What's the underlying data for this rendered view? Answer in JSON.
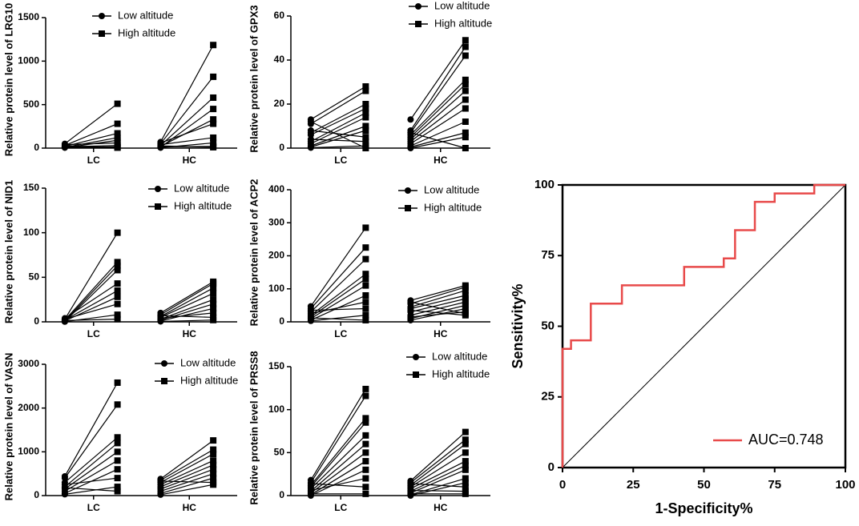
{
  "chart_data": [
    {
      "type": "paired",
      "ylabel": "Relative protein level of LRG10",
      "categories": [
        "LC",
        "HC"
      ],
      "ylim": [
        0,
        1500
      ],
      "yticks": [
        0,
        500,
        1000,
        1500
      ],
      "series": [
        {
          "name": "Low altitude",
          "marker": "circle",
          "color": "#000000",
          "values": [
            [
              50,
              30,
              20,
              10,
              5,
              40,
              15,
              8,
              25,
              12
            ],
            [
              70,
              50,
              30,
              10,
              20,
              60,
              40,
              5,
              15,
              25
            ]
          ]
        },
        {
          "name": "High altitude",
          "marker": "square",
          "color": "#000000",
          "values": [
            [
              510,
              280,
              170,
              120,
              90,
              60,
              30,
              15,
              10,
              5
            ],
            [
              1185,
              820,
              580,
              450,
              330,
              280,
              120,
              60,
              20,
              10
            ]
          ]
        }
      ]
    },
    {
      "type": "paired",
      "ylabel": "Relative protein level of GPX3",
      "categories": [
        "LC",
        "HC"
      ],
      "ylim": [
        0,
        60
      ],
      "yticks": [
        0,
        20,
        40,
        60
      ],
      "series": [
        {
          "name": "Low altitude",
          "marker": "circle",
          "color": "#000000",
          "values": [
            [
              13,
              11,
              7,
              6,
              3,
              2,
              1,
              0.5,
              8,
              4,
              0.2,
              12
            ],
            [
              13,
              8,
              7,
              6,
              5,
              4,
              3,
              2,
              1,
              0.5,
              0,
              7
            ]
          ]
        },
        {
          "name": "High altitude",
          "marker": "square",
          "color": "#000000",
          "values": [
            [
              28,
              26,
              20,
              18,
              16,
              14,
              10,
              8,
              5,
              3,
              1,
              0
            ],
            [
              49,
              46,
              42,
              31,
              29,
              26,
              22,
              18,
              12,
              7,
              5,
              0
            ]
          ]
        }
      ]
    },
    {
      "type": "paired",
      "ylabel": "Relative protein level of NID1",
      "categories": [
        "LC",
        "HC"
      ],
      "ylim": [
        0,
        150
      ],
      "yticks": [
        0,
        50,
        100,
        150
      ],
      "series": [
        {
          "name": "Low altitude",
          "marker": "circle",
          "color": "#000000",
          "values": [
            [
              3,
              2,
              1,
              0.5,
              4,
              2,
              1,
              3,
              0.2,
              1.5
            ],
            [
              10,
              8,
              6,
              5,
              3,
              2,
              1,
              4,
              7,
              0.5
            ]
          ]
        },
        {
          "name": "High altitude",
          "marker": "square",
          "color": "#000000",
          "values": [
            [
              100,
              67,
              63,
              58,
              43,
              35,
              28,
              20,
              8,
              3
            ],
            [
              45,
              43,
              38,
              32,
              25,
              20,
              15,
              10,
              5,
              2
            ]
          ]
        }
      ]
    },
    {
      "type": "paired",
      "ylabel": "Relative protein level of ACP2",
      "categories": [
        "LC",
        "HC"
      ],
      "ylim": [
        0,
        400
      ],
      "yticks": [
        0,
        100,
        200,
        300,
        400
      ],
      "series": [
        {
          "name": "Low altitude",
          "marker": "circle",
          "color": "#000000",
          "values": [
            [
              47,
              40,
              30,
              20,
              15,
              10,
              5,
              25,
              35,
              3,
              12
            ],
            [
              65,
              55,
              45,
              40,
              30,
              20,
              10,
              5,
              15,
              60,
              35
            ]
          ]
        },
        {
          "name": "High altitude",
          "marker": "square",
          "color": "#000000",
          "values": [
            [
              285,
              225,
              190,
              145,
              130,
              110,
              80,
              60,
              40,
              20,
              5
            ],
            [
              110,
              105,
              95,
              80,
              70,
              60,
              50,
              40,
              30,
              25,
              20
            ]
          ]
        }
      ]
    },
    {
      "type": "paired",
      "ylabel": "Relative protein level of VASN",
      "categories": [
        "LC",
        "HC"
      ],
      "ylim": [
        0,
        3000
      ],
      "yticks": [
        0,
        1000,
        2000,
        3000
      ],
      "series": [
        {
          "name": "Low altitude",
          "marker": "circle",
          "color": "#000000",
          "values": [
            [
              440,
              400,
              300,
              200,
              150,
              100,
              50,
              250,
              30,
              180
            ],
            [
              380,
              350,
              300,
              250,
              200,
              150,
              100,
              50,
              330,
              20
            ]
          ]
        },
        {
          "name": "High altitude",
          "marker": "square",
          "color": "#000000",
          "values": [
            [
              2580,
              2080,
              1330,
              1200,
              1000,
              800,
              600,
              400,
              200,
              100
            ],
            [
              1260,
              1050,
              950,
              800,
              700,
              600,
              500,
              400,
              300,
              250
            ]
          ]
        }
      ]
    },
    {
      "type": "paired",
      "ylabel": "Relative protein level of PRSS8",
      "categories": [
        "LC",
        "HC"
      ],
      "ylim": [
        0,
        150
      ],
      "yticks": [
        0,
        50,
        100,
        150
      ],
      "series": [
        {
          "name": "Low altitude",
          "marker": "circle",
          "color": "#000000",
          "values": [
            [
              18,
              15,
              12,
              10,
              8,
              5,
              3,
              1,
              0,
              6,
              14,
              2
            ],
            [
              17,
              15,
              12,
              10,
              8,
              5,
              3,
              1,
              0,
              14,
              6,
              2
            ]
          ]
        },
        {
          "name": "High altitude",
          "marker": "square",
          "color": "#000000",
          "values": [
            [
              124,
              116,
              90,
              85,
              70,
              60,
              50,
              40,
              30,
              20,
              10,
              2
            ],
            [
              74,
              65,
              60,
              50,
              40,
              35,
              30,
              20,
              15,
              10,
              5,
              2
            ]
          ]
        }
      ]
    },
    {
      "type": "line",
      "xlabel": "1-Specificity%",
      "ylabel": "Sensitivity%",
      "xlim": [
        0,
        100
      ],
      "ylim": [
        0,
        100
      ],
      "xticks": [
        0,
        25,
        50,
        75,
        100
      ],
      "yticks": [
        0,
        25,
        50,
        75,
        100
      ],
      "x": [
        0,
        0,
        3,
        3,
        10,
        10,
        21,
        21,
        43,
        43,
        57,
        57,
        61,
        61,
        68,
        68,
        75,
        75,
        89,
        89,
        100
      ],
      "series": [
        {
          "name": "AUC=0.748",
          "color": "#e84a4a",
          "values": [
            0,
            42,
            42,
            45,
            45,
            58,
            58,
            64.5,
            64.5,
            71,
            71,
            74,
            74,
            84,
            84,
            94,
            94,
            97,
            97,
            100,
            100
          ]
        }
      ]
    }
  ]
}
